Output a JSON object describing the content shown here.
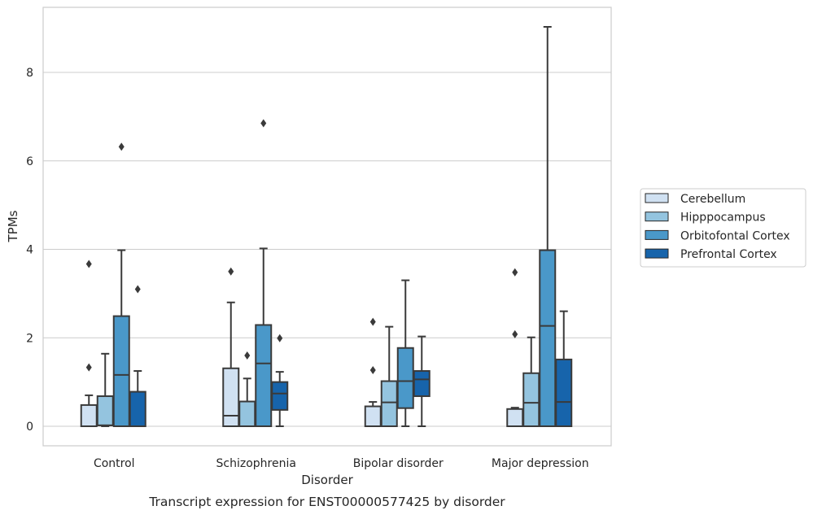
{
  "chart_data": {
    "type": "box",
    "title": "",
    "caption": "Transcript expression for ENST00000577425 by disorder",
    "xlabel": "Disorder",
    "ylabel": "TPMs",
    "ylim": [
      -0.45,
      9.45
    ],
    "yticks": [
      0,
      2,
      4,
      6,
      8
    ],
    "grid": "horizontal",
    "legend_position": "right",
    "categories": [
      "Control",
      "Schizophrenia",
      "Bipolar disorder",
      "Major depression"
    ],
    "series": [
      {
        "name": "Cerebellum",
        "color": "#d0e1f2",
        "boxes": [
          {
            "whisker_low": 0,
            "q1": 0,
            "median": 0,
            "q3": 0.48,
            "whisker_high": 0.7,
            "outliers": [
              1.33,
              3.67
            ]
          },
          {
            "whisker_low": 0,
            "q1": 0,
            "median": 0.24,
            "q3": 1.31,
            "whisker_high": 2.8,
            "outliers": [
              3.5
            ]
          },
          {
            "whisker_low": 0,
            "q1": 0,
            "median": 0,
            "q3": 0.45,
            "whisker_high": 0.55,
            "outliers": [
              1.27,
              2.36
            ]
          },
          {
            "whisker_low": 0,
            "q1": 0,
            "median": 0,
            "q3": 0.39,
            "whisker_high": 0.42,
            "outliers": [
              2.08,
              3.48
            ]
          }
        ]
      },
      {
        "name": "Hipppocampus",
        "color": "#94c4df",
        "boxes": [
          {
            "whisker_low": 0,
            "q1": 0.02,
            "median": 0.02,
            "q3": 0.68,
            "whisker_high": 1.64,
            "outliers": []
          },
          {
            "whisker_low": 0,
            "q1": 0,
            "median": 0,
            "q3": 0.56,
            "whisker_high": 1.08,
            "outliers": [
              1.6
            ]
          },
          {
            "whisker_low": 0,
            "q1": 0,
            "median": 0.54,
            "q3": 1.02,
            "whisker_high": 2.25,
            "outliers": []
          },
          {
            "whisker_low": 0,
            "q1": 0,
            "median": 0.53,
            "q3": 1.2,
            "whisker_high": 2.01,
            "outliers": []
          }
        ]
      },
      {
        "name": "Orbitofontal Cortex",
        "color": "#4a98c9",
        "boxes": [
          {
            "whisker_low": 0,
            "q1": 0,
            "median": 1.16,
            "q3": 2.49,
            "whisker_high": 3.98,
            "outliers": [
              6.32
            ]
          },
          {
            "whisker_low": 0,
            "q1": 0,
            "median": 1.42,
            "q3": 2.29,
            "whisker_high": 4.02,
            "outliers": [
              6.85
            ]
          },
          {
            "whisker_low": 0,
            "q1": 0.41,
            "median": 1.02,
            "q3": 1.77,
            "whisker_high": 3.3,
            "outliers": []
          },
          {
            "whisker_low": 0,
            "q1": 0,
            "median": 2.27,
            "q3": 3.98,
            "whisker_high": 9.03,
            "outliers": []
          }
        ]
      },
      {
        "name": "Prefrontal Cortex",
        "color": "#1764ab",
        "boxes": [
          {
            "whisker_low": 0,
            "q1": 0,
            "median": 0,
            "q3": 0.78,
            "whisker_high": 1.25,
            "outliers": [
              3.1
            ]
          },
          {
            "whisker_low": 0,
            "q1": 0.37,
            "median": 0.74,
            "q3": 1.0,
            "whisker_high": 1.23,
            "outliers": [
              1.99
            ]
          },
          {
            "whisker_low": 0,
            "q1": 0.68,
            "median": 1.06,
            "q3": 1.25,
            "whisker_high": 2.03,
            "outliers": []
          },
          {
            "whisker_low": 0,
            "q1": 0,
            "median": 0.55,
            "q3": 1.51,
            "whisker_high": 2.6,
            "outliers": []
          }
        ]
      }
    ]
  }
}
